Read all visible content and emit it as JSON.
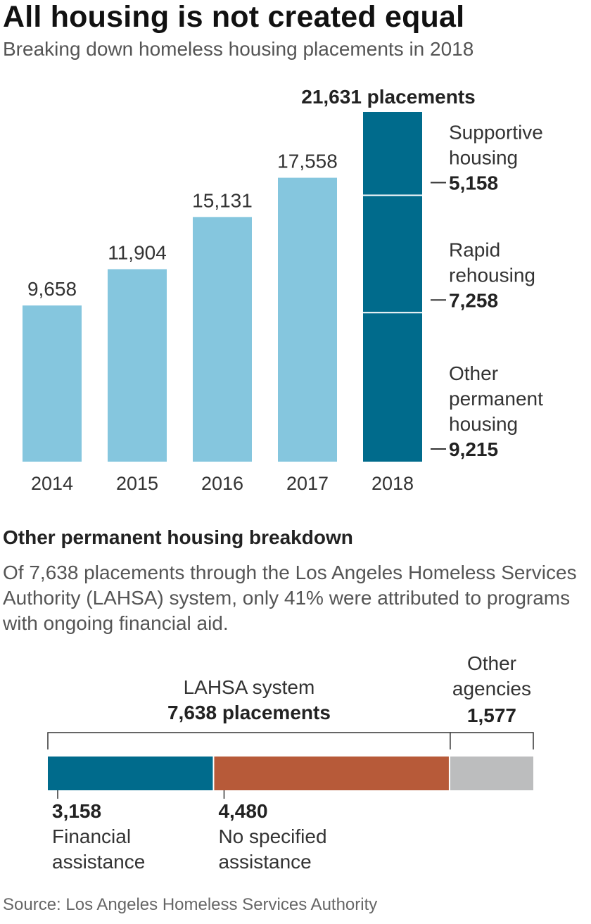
{
  "title": "All housing is not created equal",
  "subtitle": "Breaking down homeless housing placements in 2018",
  "colors": {
    "past_years": "#85c6de",
    "highlight": "#006b8c",
    "financial": "#006b8c",
    "no_specified": "#b75a39",
    "other_agencies": "#bcbdbe"
  },
  "chart_data": [
    {
      "type": "bar",
      "categories": [
        "2014",
        "2015",
        "2016",
        "2017",
        "2018"
      ],
      "values": [
        9658,
        11904,
        15131,
        17558,
        21631
      ],
      "value_labels": [
        "9,658",
        "11,904",
        "15,131",
        "17,558",
        ""
      ],
      "ylim": [
        0,
        21631
      ],
      "total_label": "21,631 placements",
      "stacked_2018": [
        {
          "name_lines": [
            "Other",
            "permanent",
            "housing"
          ],
          "value": 9215,
          "value_label": "9,215"
        },
        {
          "name_lines": [
            "Rapid",
            "rehousing"
          ],
          "value": 7258,
          "value_label": "7,258"
        },
        {
          "name_lines": [
            "Supportive",
            "housing"
          ],
          "value": 5158,
          "value_label": "5,158"
        }
      ],
      "grid": false,
      "legend": "none"
    },
    {
      "type": "bar",
      "orientation": "horizontal-stacked",
      "title": "Other permanent housing breakdown",
      "description": "Of 7,638 placements through the Los Angeles Homeless Services Authority (LAHSA) system, only 41% were attributed to programs with ongoing financial aid.",
      "groups": [
        {
          "name": "LAHSA system",
          "value_label": "7,638 placements",
          "value": 7638
        },
        {
          "name_lines": [
            "Other",
            "agencies"
          ],
          "value_label": "1,577",
          "value": 1577
        }
      ],
      "segments": [
        {
          "name_lines": [
            "Financial",
            "assistance"
          ],
          "value": 3158,
          "value_label": "3,158"
        },
        {
          "name_lines": [
            "No specified",
            "assistance"
          ],
          "value": 4480,
          "value_label": "4,480"
        },
        {
          "name_lines": [],
          "value": 1577,
          "value_label": ""
        }
      ]
    }
  ],
  "source": "Source: Los Angeles Homeless Services Authority"
}
